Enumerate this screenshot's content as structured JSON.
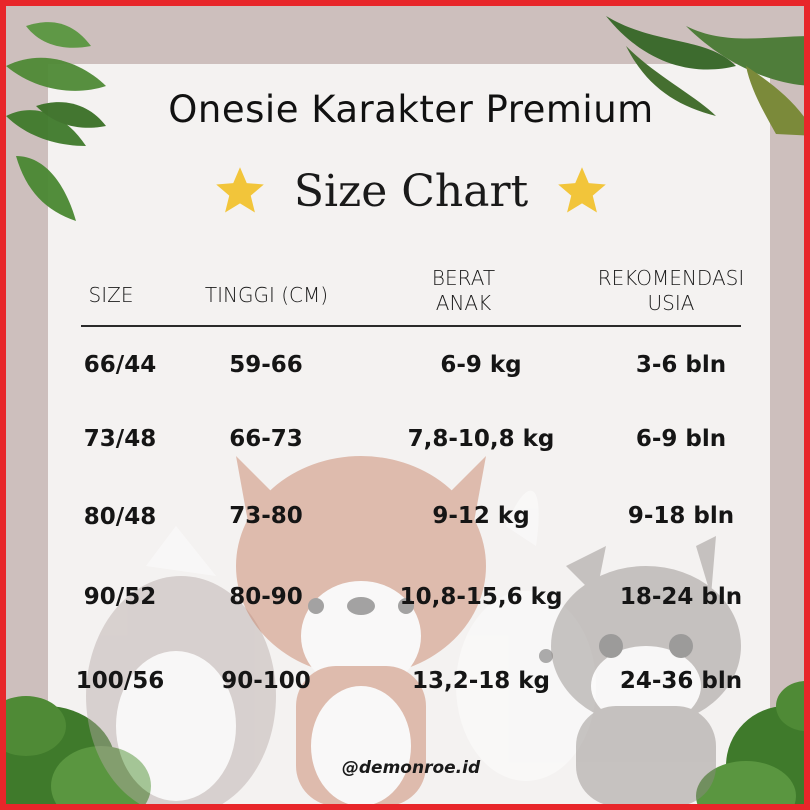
{
  "title": "Onesie Karakter Premium",
  "subtitle": "Size Chart",
  "headers": {
    "size": "SIZE",
    "height": "TINGGI (CM)",
    "weight_line1": "BERAT",
    "weight_line2": "ANAK",
    "age_line1": "REKOMENDASI",
    "age_line2": "USIA"
  },
  "rows": [
    {
      "size": "66/44",
      "height": "59-66",
      "weight": "6-9 kg",
      "age": "3-6 bln"
    },
    {
      "size": "73/48",
      "height": "66-73",
      "weight": "7,8-10,8 kg",
      "age": "6-9 bln"
    },
    {
      "size": "80/48",
      "height": "73-80",
      "weight": "9-12 kg",
      "age": "9-18 bln"
    },
    {
      "size": "90/52",
      "height": "80-90",
      "weight": "10,8-15,6 kg",
      "age": "18-24 bln"
    },
    {
      "size": "100/56",
      "height": "90-100",
      "weight": "13,2-18 kg",
      "age": "24-36 bln"
    }
  ],
  "handle": "@demonroe.id",
  "colors": {
    "border": "#e8262a",
    "frame": "#cdbfbd",
    "panel": "#f4f2f1",
    "star": "#f2c53a",
    "leaf": "#3d7a2a"
  },
  "icons": [
    "star-icon",
    "leaf-icon",
    "fox-illustration",
    "owl-illustration",
    "bunny-illustration",
    "raccoon-illustration"
  ]
}
